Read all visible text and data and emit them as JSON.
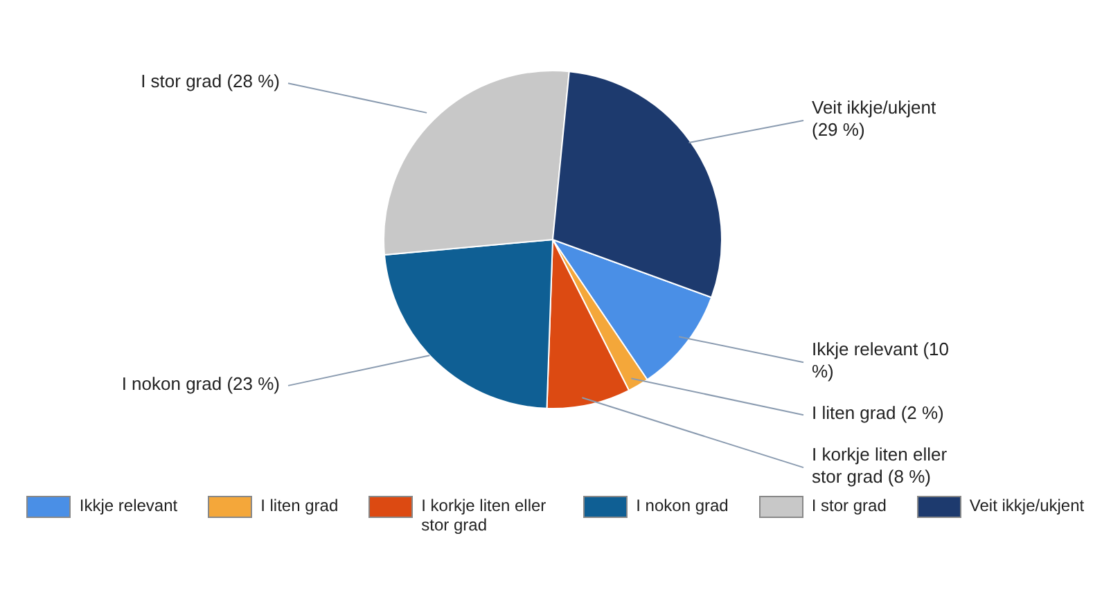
{
  "chart_data": {
    "type": "pie",
    "categories": [
      "Ikkje relevant",
      "I liten grad",
      "I korkje liten eller stor grad",
      "I nokon grad",
      "I stor grad",
      "Veit ikkje/ukjent"
    ],
    "values": [
      10,
      2,
      8,
      23,
      28,
      29
    ],
    "value_labels": [
      "(10 %)",
      "(2 %)",
      "(8 %)",
      "(23 %)",
      "(28 %)",
      "(29 %)"
    ],
    "colors": [
      "#4a8fe6",
      "#f4a73a",
      "#dc4a12",
      "#0f5f94",
      "#c8c8c8",
      "#1d3a6e"
    ],
    "legend": "bottom"
  }
}
